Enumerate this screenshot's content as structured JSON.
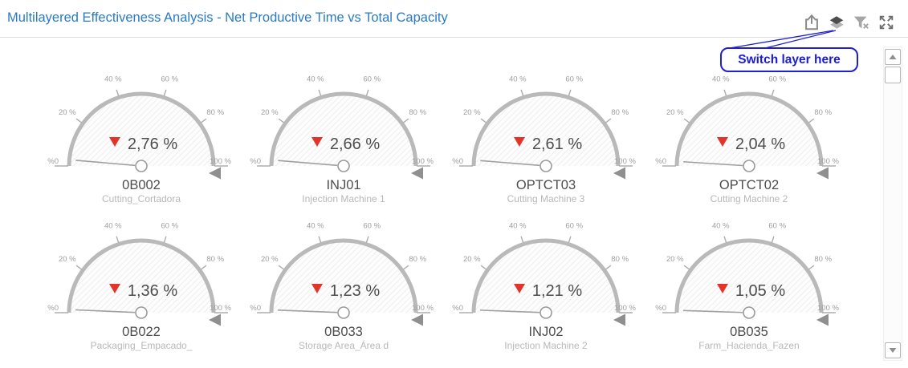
{
  "header": {
    "title": "Multilayered Effectiveness Analysis - Net Productive Time vs Total Capacity",
    "icons": [
      "export-icon",
      "layers-icon",
      "filter-clear-icon",
      "fullscreen-icon"
    ]
  },
  "tooltip": {
    "label": "Switch layer here"
  },
  "scrollbar": {
    "icons": [
      "scroll-up-icon",
      "scroll-down-icon"
    ]
  },
  "colors": {
    "title_blue": "#2a7ac4",
    "tooltip_blue": "#1b1bd6",
    "value_red": "#e2342b",
    "arc_gray": "#b9b9b9",
    "value_text": "#4d4d4d",
    "tick_text": "#9e9e9e",
    "subtitle_text": "#b8b8b8",
    "marker_gray": "#8f8f8f"
  },
  "chart_data": {
    "type": "gauge",
    "title": "Multilayered Effectiveness Analysis - Net Productive Time vs Total Capacity",
    "layout": {
      "rows": 2,
      "cols": 4
    },
    "axis": {
      "min": 0,
      "max": 100,
      "unit": "%",
      "tick_values": [
        0,
        20,
        40,
        60,
        80,
        100
      ],
      "tick_labels": [
        "%0",
        "20 %",
        "40 %",
        "60 %",
        "80 %",
        "100 %"
      ]
    },
    "gauges": [
      {
        "name": "0B002",
        "description": "Cutting_Cortadora",
        "value": 2.76,
        "value_display": "2,76 %",
        "trend": "down"
      },
      {
        "name": "INJ01",
        "description": "Injection Machine 1",
        "value": 2.66,
        "value_display": "2,66 %",
        "trend": "down"
      },
      {
        "name": "OPTCT03",
        "description": "Cutting Machine 3",
        "value": 2.61,
        "value_display": "2,61 %",
        "trend": "down"
      },
      {
        "name": "OPTCT02",
        "description": "Cutting Machine 2",
        "value": 2.04,
        "value_display": "2,04 %",
        "trend": "down"
      },
      {
        "name": "0B022",
        "description": "Packaging_Empacado_",
        "value": 1.36,
        "value_display": "1,36 %",
        "trend": "down"
      },
      {
        "name": "0B033",
        "description": "Storage Area_Área d",
        "value": 1.23,
        "value_display": "1,23 %",
        "trend": "down"
      },
      {
        "name": "INJ02",
        "description": "Injection Machine 2",
        "value": 1.21,
        "value_display": "1,21 %",
        "trend": "down"
      },
      {
        "name": "0B035",
        "description": "Farm_Hacienda_Fazen",
        "value": 1.05,
        "value_display": "1,05 %",
        "trend": "down"
      }
    ]
  }
}
